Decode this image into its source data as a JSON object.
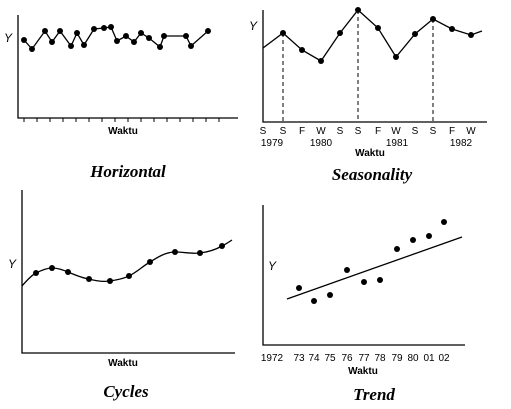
{
  "panels": [
    {
      "title": "Horizontal",
      "y_label": "Y",
      "x_label": "Waktu"
    },
    {
      "title": "Seasonality",
      "y_label": "Y",
      "x_label": "Waktu",
      "x_ticks": [
        "S",
        "S",
        "F",
        "W",
        "S",
        "S",
        "F",
        "W",
        "S",
        "S",
        "F",
        "W"
      ],
      "years": [
        "1979",
        "1980",
        "1981",
        "1982"
      ]
    },
    {
      "title": "Cycles",
      "y_label": "Y",
      "x_label": "Waktu"
    },
    {
      "title": "Trend",
      "y_label": "Y",
      "x_label": "Waktu",
      "x_ticks": [
        "1972",
        "73",
        "74",
        "75",
        "76",
        "77",
        "78",
        "79",
        "80",
        "01",
        "02"
      ]
    }
  ]
}
